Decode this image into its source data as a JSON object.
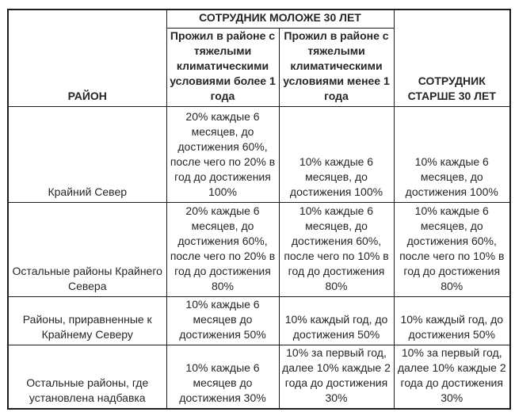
{
  "colors": {
    "border": "#1d1d1d",
    "body_text": "#262626",
    "header_text": "#0f0f0f",
    "background": "#ffffff"
  },
  "table": {
    "header": {
      "region": "РАЙОН",
      "young_group": "СОТРУДНИК МОЛОЖЕ 30 ЛЕТ",
      "young_more_year": "Прожил в районе с\nтяжелыми\nклиматическими\nусловиями более 1\nгода",
      "young_less_year": "Прожил в районе с\nтяжелыми\nклиматическими\nусловиями менее 1\nгода",
      "older": "СОТРУДНИК\nСТАРШЕ 30 ЛЕТ"
    },
    "rows": [
      {
        "region": "Крайний Север",
        "young_more_year": "20% каждые 6\nмесяцев, до\nдостижения 60%,\nпосле чего по 20% в\nгод до достижения\n100%",
        "young_less_year": "10% каждые 6\nмесяцев, до\nдостижения 100%",
        "older": "10% каждые 6\nмесяцев, до\nдостижения 100%"
      },
      {
        "region": "Остальные районы Крайнего\nСевера",
        "young_more_year": "20% каждые 6\nмесяцев, до\nдостижения 60%,\nпосле чего по 20% в\nгод до достижения\n80%",
        "young_less_year": "10% каждые 6\nмесяцев, до\nдостижения 60%,\nпосле чего по 10% в\nгод до достижения\n80%",
        "older": "10% каждые 6\nмесяцев, до\nдостижения 60%,\nпосле чего по 10% в\nгод до достижения\n80%"
      },
      {
        "region": "Районы, приравненные к\nКрайнему Северу",
        "young_more_year": "10% каждые 6\nмесяцев до\nдостижения 50%",
        "young_less_year": "10% каждый год, до\nдостижения 50%",
        "older": "10% каждый год, до\nдостижения 50%"
      },
      {
        "region": "Остальные районы, где\nустановлена надбавка",
        "young_more_year": "10% каждые 6\nмесяцев до\nдостижения 30%",
        "young_less_year": "10% за первый год,\nдалее 10% каждые 2\nгода до достижения\n30%",
        "older": "10% за первый год,\nдалее 10% каждые 2\nгода до достижения\n30%"
      }
    ]
  }
}
